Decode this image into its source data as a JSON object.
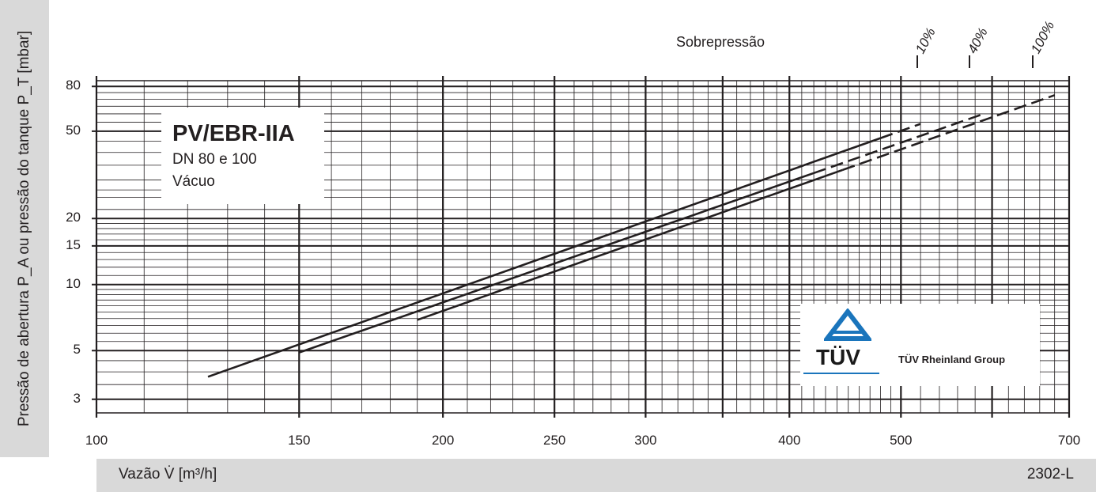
{
  "chart_data": {
    "type": "line",
    "title": "PV/EBR-IIA",
    "subtitle_lines": [
      "DN 80 e 100",
      "Vácuo"
    ],
    "xlabel": "Vazão V̇ [m³/h]",
    "ylabel": "Pressão de abertura P_A ou pressão do tanque P_T [mbar]",
    "x_scale": "log",
    "y_scale": "log",
    "xlim": [
      100,
      700
    ],
    "ylim": [
      2.6,
      85
    ],
    "x_tick_labels": [
      "100",
      "150",
      "200",
      "250",
      "300",
      "400",
      "500",
      "700"
    ],
    "y_tick_labels": [
      "3",
      "5",
      "10",
      "15",
      "20",
      "50",
      "80"
    ],
    "overpressure_label": "Sobrepressão",
    "series": [
      {
        "name": "10%",
        "x": [
          125,
          505
        ],
        "y": [
          3.8,
          50
        ],
        "dashed_from_x": 480,
        "x_end_dashed": 520,
        "y_end_dashed": 54
      },
      {
        "name": "40%",
        "x": [
          150,
          590
        ],
        "y": [
          4.9,
          60
        ],
        "dashed_from_x": 420,
        "x_end_dashed": 590,
        "y_end_dashed": 60
      },
      {
        "name": "100%",
        "x": [
          190,
          680
        ],
        "y": [
          6.9,
          73
        ],
        "dashed_from_x": 445,
        "x_end_dashed": 680,
        "y_end_dashed": 73
      }
    ],
    "grid": true
  },
  "legend_labels": [
    "10%",
    "40%",
    "100%"
  ],
  "logo": {
    "word": "TÜV",
    "group": "TÜV Rheinland Group",
    "color": "#1a75bc"
  },
  "figure_code": "2302-L"
}
